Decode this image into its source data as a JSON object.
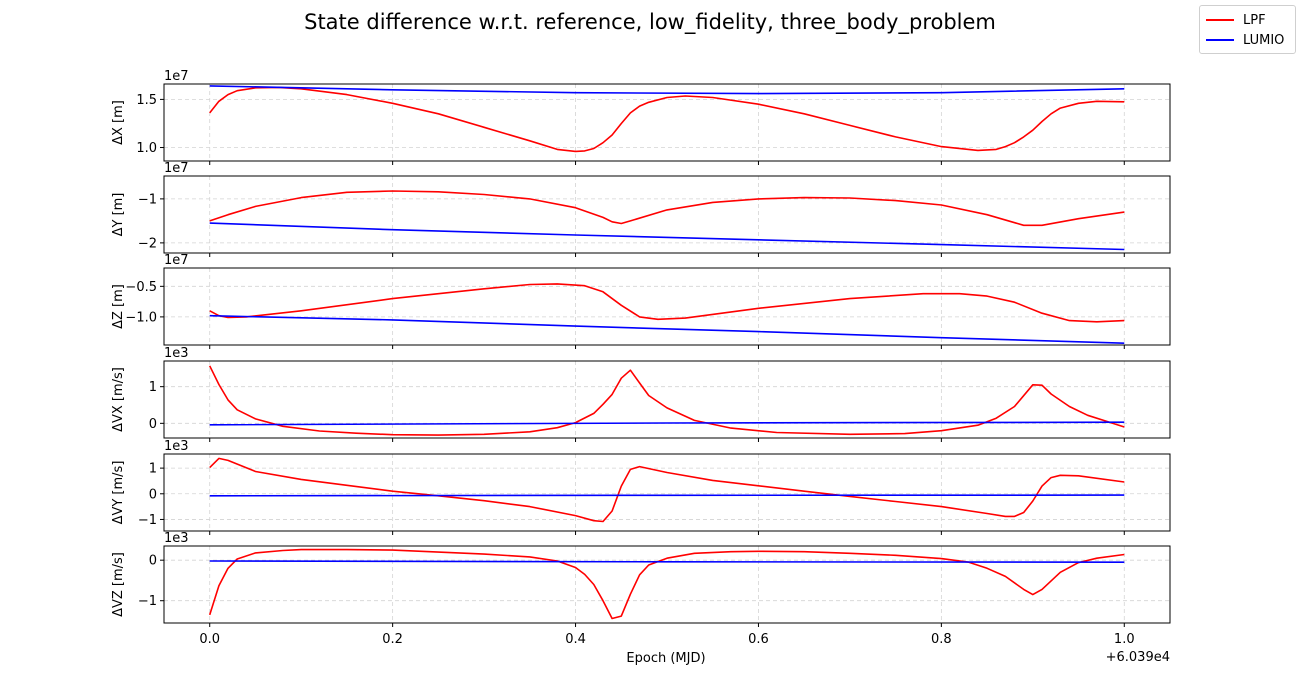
{
  "figure": {
    "title": "State difference w.r.t. reference, low_fidelity, three_body_problem",
    "xlabel": "Epoch (MJD)",
    "x_offset_label": "+6.039e4",
    "x_ticks": [
      0.0,
      0.2,
      0.4,
      0.6,
      0.8,
      1.0
    ],
    "x_tick_labels": [
      "0.0",
      "0.2",
      "0.4",
      "0.6",
      "0.8",
      "1.0"
    ],
    "xlim": [
      -0.05,
      1.05
    ],
    "legend": [
      {
        "label": "LPF",
        "color": "#ff0000"
      },
      {
        "label": "LUMIO",
        "color": "#0000ff"
      }
    ]
  },
  "chart_data": [
    {
      "type": "line",
      "ylabel": "ΔX [m]",
      "exponent_label": "1e7",
      "ylim": [
        0.86,
        1.66
      ],
      "y_ticks": [
        1.0,
        1.5
      ],
      "y_tick_labels": [
        "1.0",
        "1.5"
      ],
      "grid": true,
      "series": [
        {
          "name": "LPF",
          "color": "#ff0000",
          "points": [
            [
              0,
              1.36
            ],
            [
              0.01,
              1.48
            ],
            [
              0.02,
              1.55
            ],
            [
              0.03,
              1.59
            ],
            [
              0.05,
              1.62
            ],
            [
              0.075,
              1.625
            ],
            [
              0.1,
              1.61
            ],
            [
              0.15,
              1.55
            ],
            [
              0.2,
              1.46
            ],
            [
              0.25,
              1.35
            ],
            [
              0.3,
              1.21
            ],
            [
              0.35,
              1.07
            ],
            [
              0.38,
              0.98
            ],
            [
              0.4,
              0.96
            ],
            [
              0.41,
              0.965
            ],
            [
              0.42,
              0.99
            ],
            [
              0.43,
              1.05
            ],
            [
              0.44,
              1.13
            ],
            [
              0.45,
              1.25
            ],
            [
              0.46,
              1.36
            ],
            [
              0.47,
              1.43
            ],
            [
              0.48,
              1.47
            ],
            [
              0.5,
              1.52
            ],
            [
              0.52,
              1.535
            ],
            [
              0.55,
              1.52
            ],
            [
              0.6,
              1.45
            ],
            [
              0.65,
              1.35
            ],
            [
              0.7,
              1.23
            ],
            [
              0.75,
              1.11
            ],
            [
              0.8,
              1.01
            ],
            [
              0.84,
              0.97
            ],
            [
              0.86,
              0.98
            ],
            [
              0.87,
              1.01
            ],
            [
              0.88,
              1.05
            ],
            [
              0.89,
              1.11
            ],
            [
              0.9,
              1.18
            ],
            [
              0.91,
              1.27
            ],
            [
              0.92,
              1.35
            ],
            [
              0.93,
              1.41
            ],
            [
              0.95,
              1.46
            ],
            [
              0.97,
              1.48
            ],
            [
              1.0,
              1.475
            ]
          ]
        },
        {
          "name": "LUMIO",
          "color": "#0000ff",
          "points": [
            [
              0,
              1.64
            ],
            [
              0.2,
              1.6
            ],
            [
              0.4,
              1.57
            ],
            [
              0.6,
              1.56
            ],
            [
              0.8,
              1.57
            ],
            [
              1.0,
              1.61
            ]
          ]
        }
      ]
    },
    {
      "type": "line",
      "ylabel": "ΔY [m]",
      "exponent_label": "1e7",
      "ylim": [
        -2.23,
        -0.48
      ],
      "y_ticks": [
        -1.0,
        -2.0
      ],
      "y_tick_labels": [
        "−1",
        "−2"
      ],
      "grid": true,
      "series": [
        {
          "name": "LPF",
          "color": "#ff0000",
          "points": [
            [
              0,
              -1.5
            ],
            [
              0.02,
              -1.36
            ],
            [
              0.05,
              -1.17
            ],
            [
              0.1,
              -0.97
            ],
            [
              0.15,
              -0.85
            ],
            [
              0.2,
              -0.82
            ],
            [
              0.25,
              -0.84
            ],
            [
              0.3,
              -0.9
            ],
            [
              0.35,
              -1.0
            ],
            [
              0.4,
              -1.2
            ],
            [
              0.43,
              -1.42
            ],
            [
              0.44,
              -1.52
            ],
            [
              0.45,
              -1.56
            ],
            [
              0.46,
              -1.5
            ],
            [
              0.5,
              -1.25
            ],
            [
              0.55,
              -1.08
            ],
            [
              0.6,
              -1.0
            ],
            [
              0.65,
              -0.97
            ],
            [
              0.7,
              -0.98
            ],
            [
              0.75,
              -1.04
            ],
            [
              0.8,
              -1.14
            ],
            [
              0.85,
              -1.36
            ],
            [
              0.89,
              -1.6
            ],
            [
              0.91,
              -1.6
            ],
            [
              0.95,
              -1.45
            ],
            [
              1.0,
              -1.3
            ]
          ]
        },
        {
          "name": "LUMIO",
          "color": "#0000ff",
          "points": [
            [
              0,
              -1.55
            ],
            [
              0.2,
              -1.7
            ],
            [
              0.4,
              -1.82
            ],
            [
              0.6,
              -1.93
            ],
            [
              0.8,
              -2.04
            ],
            [
              1.0,
              -2.15
            ]
          ]
        }
      ]
    },
    {
      "type": "line",
      "ylabel": "ΔZ [m]",
      "exponent_label": "1e7",
      "ylim": [
        -1.46,
        -0.2
      ],
      "y_ticks": [
        -0.5,
        -1.0
      ],
      "y_tick_labels": [
        "−0.5",
        "−1.0"
      ],
      "grid": true,
      "series": [
        {
          "name": "LPF",
          "color": "#ff0000",
          "points": [
            [
              0,
              -0.9
            ],
            [
              0.01,
              -0.98
            ],
            [
              0.02,
              -1.01
            ],
            [
              0.04,
              -1.0
            ],
            [
              0.1,
              -0.9
            ],
            [
              0.2,
              -0.7
            ],
            [
              0.3,
              -0.54
            ],
            [
              0.35,
              -0.47
            ],
            [
              0.38,
              -0.46
            ],
            [
              0.41,
              -0.49
            ],
            [
              0.43,
              -0.59
            ],
            [
              0.45,
              -0.81
            ],
            [
              0.47,
              -1.0
            ],
            [
              0.49,
              -1.04
            ],
            [
              0.52,
              -1.02
            ],
            [
              0.6,
              -0.86
            ],
            [
              0.7,
              -0.7
            ],
            [
              0.78,
              -0.62
            ],
            [
              0.82,
              -0.62
            ],
            [
              0.85,
              -0.66
            ],
            [
              0.88,
              -0.76
            ],
            [
              0.91,
              -0.94
            ],
            [
              0.94,
              -1.06
            ],
            [
              0.97,
              -1.08
            ],
            [
              1.0,
              -1.06
            ]
          ]
        },
        {
          "name": "LUMIO",
          "color": "#0000ff",
          "points": [
            [
              0,
              -0.98
            ],
            [
              0.2,
              -1.05
            ],
            [
              0.4,
              -1.15
            ],
            [
              0.6,
              -1.24
            ],
            [
              0.8,
              -1.34
            ],
            [
              1.0,
              -1.43
            ]
          ]
        }
      ]
    },
    {
      "type": "line",
      "ylabel": "ΔVX [m/s]",
      "exponent_label": "1e3",
      "ylim": [
        -0.4,
        1.7
      ],
      "y_ticks": [
        0,
        1
      ],
      "y_tick_labels": [
        "0",
        "1"
      ],
      "grid": true,
      "series": [
        {
          "name": "LPF",
          "color": "#ff0000",
          "points": [
            [
              0,
              1.57
            ],
            [
              0.01,
              1.06
            ],
            [
              0.02,
              0.64
            ],
            [
              0.03,
              0.37
            ],
            [
              0.05,
              0.12
            ],
            [
              0.08,
              -0.08
            ],
            [
              0.12,
              -0.21
            ],
            [
              0.16,
              -0.27
            ],
            [
              0.2,
              -0.31
            ],
            [
              0.25,
              -0.32
            ],
            [
              0.3,
              -0.3
            ],
            [
              0.35,
              -0.23
            ],
            [
              0.38,
              -0.12
            ],
            [
              0.4,
              0.02
            ],
            [
              0.42,
              0.27
            ],
            [
              0.43,
              0.52
            ],
            [
              0.44,
              0.79
            ],
            [
              0.45,
              1.23
            ],
            [
              0.46,
              1.45
            ],
            [
              0.47,
              1.1
            ],
            [
              0.48,
              0.76
            ],
            [
              0.5,
              0.42
            ],
            [
              0.53,
              0.08
            ],
            [
              0.57,
              -0.13
            ],
            [
              0.62,
              -0.25
            ],
            [
              0.7,
              -0.3
            ],
            [
              0.76,
              -0.28
            ],
            [
              0.8,
              -0.2
            ],
            [
              0.84,
              -0.05
            ],
            [
              0.86,
              0.14
            ],
            [
              0.88,
              0.46
            ],
            [
              0.9,
              1.05
            ],
            [
              0.91,
              1.04
            ],
            [
              0.92,
              0.8
            ],
            [
              0.94,
              0.46
            ],
            [
              0.96,
              0.22
            ],
            [
              0.98,
              0.06
            ],
            [
              1.0,
              -0.1
            ]
          ]
        },
        {
          "name": "LUMIO",
          "color": "#0000ff",
          "points": [
            [
              0,
              -0.04
            ],
            [
              0.5,
              0.01
            ],
            [
              1.0,
              0.03
            ]
          ]
        }
      ]
    },
    {
      "type": "line",
      "ylabel": "ΔVY [m/s]",
      "exponent_label": "1e3",
      "ylim": [
        -1.45,
        1.55
      ],
      "y_ticks": [
        1,
        0,
        -1
      ],
      "y_tick_labels": [
        "1",
        "0",
        "−1"
      ],
      "grid": true,
      "series": [
        {
          "name": "LPF",
          "color": "#ff0000",
          "points": [
            [
              0,
              1.02
            ],
            [
              0.01,
              1.38
            ],
            [
              0.02,
              1.3
            ],
            [
              0.05,
              0.87
            ],
            [
              0.1,
              0.56
            ],
            [
              0.15,
              0.33
            ],
            [
              0.2,
              0.1
            ],
            [
              0.25,
              -0.08
            ],
            [
              0.3,
              -0.27
            ],
            [
              0.35,
              -0.5
            ],
            [
              0.4,
              -0.85
            ],
            [
              0.42,
              -1.05
            ],
            [
              0.43,
              -1.08
            ],
            [
              0.44,
              -0.67
            ],
            [
              0.45,
              0.3
            ],
            [
              0.46,
              0.95
            ],
            [
              0.47,
              1.06
            ],
            [
              0.5,
              0.83
            ],
            [
              0.55,
              0.52
            ],
            [
              0.6,
              0.31
            ],
            [
              0.65,
              0.1
            ],
            [
              0.7,
              -0.1
            ],
            [
              0.75,
              -0.3
            ],
            [
              0.8,
              -0.5
            ],
            [
              0.85,
              -0.77
            ],
            [
              0.87,
              -0.88
            ],
            [
              0.88,
              -0.88
            ],
            [
              0.89,
              -0.73
            ],
            [
              0.9,
              -0.28
            ],
            [
              0.91,
              0.3
            ],
            [
              0.92,
              0.63
            ],
            [
              0.93,
              0.72
            ],
            [
              0.95,
              0.7
            ],
            [
              1.0,
              0.46
            ]
          ]
        },
        {
          "name": "LUMIO",
          "color": "#0000ff",
          "points": [
            [
              0,
              -0.08
            ],
            [
              0.5,
              -0.06
            ],
            [
              1.0,
              -0.05
            ]
          ]
        }
      ]
    },
    {
      "type": "line",
      "ylabel": "ΔVZ [m/s]",
      "exponent_label": "1e3",
      "ylim": [
        -1.55,
        0.35
      ],
      "y_ticks": [
        0,
        -1
      ],
      "y_tick_labels": [
        "0",
        "−1"
      ],
      "grid": true,
      "series": [
        {
          "name": "LPF",
          "color": "#ff0000",
          "points": [
            [
              0,
              -1.35
            ],
            [
              0.01,
              -0.63
            ],
            [
              0.02,
              -0.2
            ],
            [
              0.03,
              0.03
            ],
            [
              0.05,
              0.18
            ],
            [
              0.08,
              0.24
            ],
            [
              0.1,
              0.26
            ],
            [
              0.15,
              0.26
            ],
            [
              0.2,
              0.25
            ],
            [
              0.25,
              0.2
            ],
            [
              0.3,
              0.15
            ],
            [
              0.35,
              0.08
            ],
            [
              0.38,
              -0.02
            ],
            [
              0.4,
              -0.18
            ],
            [
              0.41,
              -0.35
            ],
            [
              0.42,
              -0.6
            ],
            [
              0.43,
              -1.0
            ],
            [
              0.44,
              -1.44
            ],
            [
              0.45,
              -1.38
            ],
            [
              0.46,
              -0.84
            ],
            [
              0.47,
              -0.36
            ],
            [
              0.48,
              -0.12
            ],
            [
              0.5,
              0.05
            ],
            [
              0.53,
              0.17
            ],
            [
              0.57,
              0.21
            ],
            [
              0.6,
              0.22
            ],
            [
              0.65,
              0.21
            ],
            [
              0.7,
              0.17
            ],
            [
              0.75,
              0.12
            ],
            [
              0.8,
              0.04
            ],
            [
              0.83,
              -0.05
            ],
            [
              0.85,
              -0.2
            ],
            [
              0.87,
              -0.4
            ],
            [
              0.89,
              -0.72
            ],
            [
              0.9,
              -0.85
            ],
            [
              0.91,
              -0.72
            ],
            [
              0.93,
              -0.3
            ],
            [
              0.95,
              -0.06
            ],
            [
              0.97,
              0.05
            ],
            [
              1.0,
              0.14
            ]
          ]
        },
        {
          "name": "LUMIO",
          "color": "#0000ff",
          "points": [
            [
              0,
              -0.02
            ],
            [
              0.5,
              -0.04
            ],
            [
              1.0,
              -0.05
            ]
          ]
        }
      ]
    }
  ]
}
